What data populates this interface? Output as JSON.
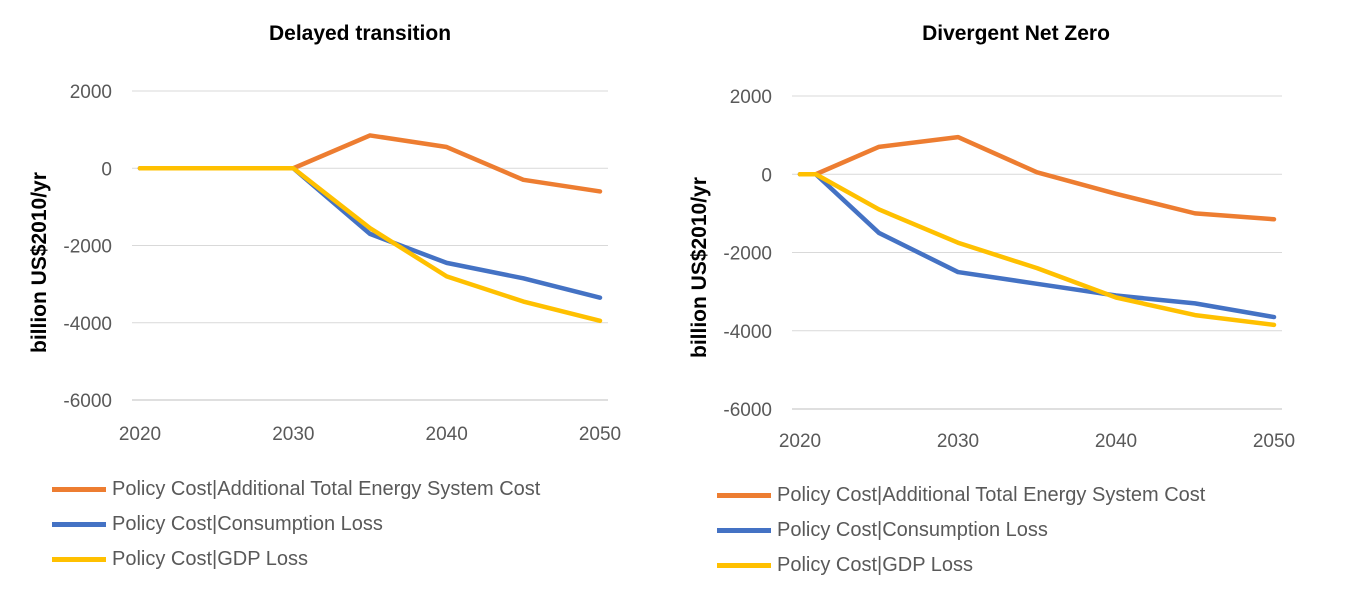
{
  "chart_data": [
    {
      "type": "line",
      "title": "Delayed transition",
      "ylabel": "billion US$2010/yr",
      "xlabel": "",
      "x_ticks": [
        "2020",
        "2030",
        "2040",
        "2050"
      ],
      "y_ticks": [
        "2000",
        "0",
        "-2000",
        "-4000",
        "-6000"
      ],
      "xlim": [
        2020,
        2050
      ],
      "ylim": [
        -6000,
        2000
      ],
      "grid": true,
      "legend_position": "bottom",
      "series": [
        {
          "name": "Policy Cost|Additional Total Energy System Cost",
          "color": "#ED7D31",
          "x": [
            2020,
            2025,
            2030,
            2035,
            2040,
            2045,
            2050
          ],
          "y": [
            0,
            0,
            0,
            850,
            550,
            -300,
            -600
          ]
        },
        {
          "name": "Policy Cost|Consumption Loss",
          "color": "#4472C4",
          "x": [
            2020,
            2025,
            2030,
            2035,
            2040,
            2045,
            2050
          ],
          "y": [
            0,
            0,
            0,
            -1700,
            -2450,
            -2850,
            -3350
          ]
        },
        {
          "name": "Policy Cost|GDP Loss",
          "color": "#FFC000",
          "x": [
            2020,
            2025,
            2030,
            2035,
            2040,
            2045,
            2050
          ],
          "y": [
            0,
            0,
            0,
            -1550,
            -2800,
            -3450,
            -3950
          ]
        }
      ]
    },
    {
      "type": "line",
      "title": "Divergent Net Zero",
      "ylabel": "billion US$2010/yr",
      "xlabel": "",
      "x_ticks": [
        "2020",
        "2030",
        "2040",
        "2050"
      ],
      "y_ticks": [
        "2000",
        "0",
        "-2000",
        "-4000",
        "-6000"
      ],
      "xlim": [
        2020,
        2050
      ],
      "ylim": [
        -6000,
        2000
      ],
      "grid": true,
      "legend_position": "bottom",
      "series": [
        {
          "name": "Policy Cost|Additional Total Energy System Cost",
          "color": "#ED7D31",
          "x": [
            2020,
            2021,
            2025,
            2030,
            2035,
            2040,
            2045,
            2050
          ],
          "y": [
            0,
            0,
            700,
            950,
            50,
            -500,
            -1000,
            -1150
          ]
        },
        {
          "name": "Policy Cost|Consumption Loss",
          "color": "#4472C4",
          "x": [
            2020,
            2021,
            2025,
            2030,
            2035,
            2040,
            2045,
            2050
          ],
          "y": [
            0,
            0,
            -1500,
            -2500,
            -2800,
            -3100,
            -3300,
            -3650
          ]
        },
        {
          "name": "Policy Cost|GDP Loss",
          "color": "#FFC000",
          "x": [
            2020,
            2021,
            2025,
            2030,
            2035,
            2040,
            2045,
            2050
          ],
          "y": [
            0,
            0,
            -900,
            -1750,
            -2400,
            -3150,
            -3600,
            -3850
          ]
        }
      ]
    }
  ]
}
